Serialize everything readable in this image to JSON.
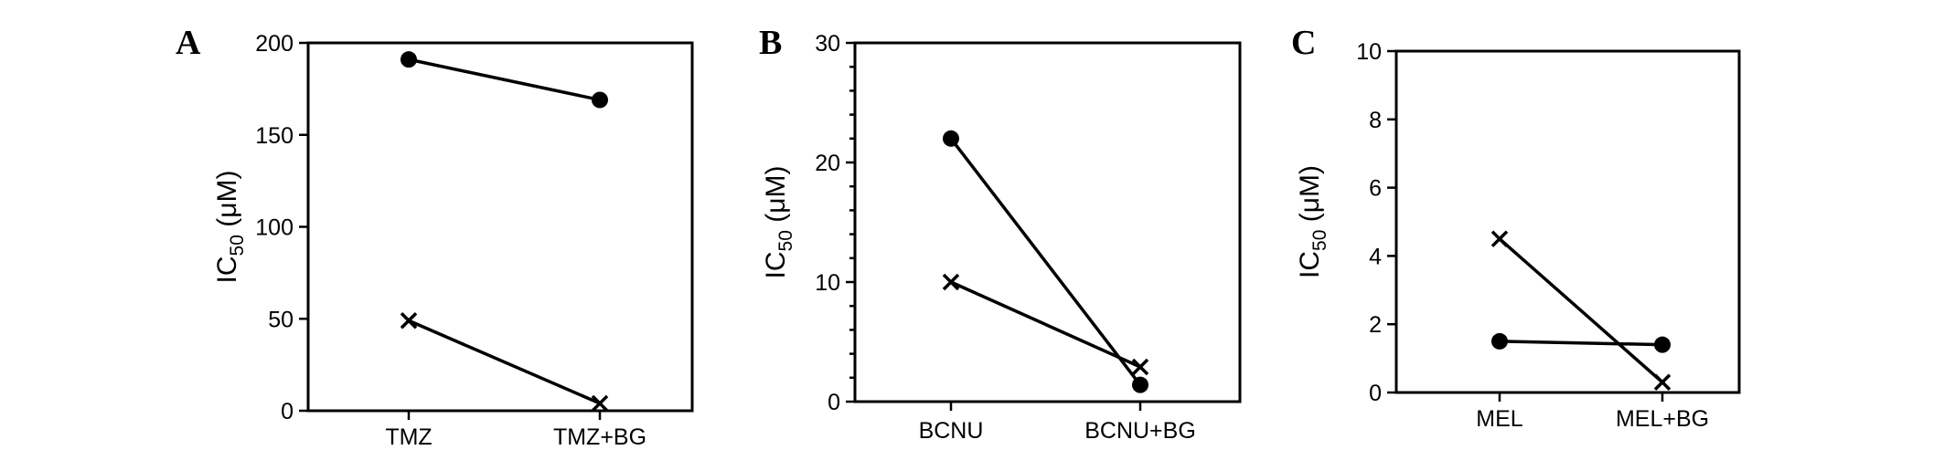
{
  "chart_data": [
    {
      "type": "line",
      "panel_label": "A",
      "ylabel": "IC",
      "ylabel_sub": "50",
      "ylabel_unit": " (μM)",
      "categories": [
        "TMZ",
        "TMZ+BG"
      ],
      "ylim": [
        0,
        200
      ],
      "yticks": [
        0,
        50,
        100,
        150,
        200
      ],
      "minor_ticks": false,
      "series": [
        {
          "marker": "dot",
          "values": [
            191,
            169
          ]
        },
        {
          "marker": "x",
          "values": [
            49,
            4
          ]
        }
      ]
    },
    {
      "type": "line",
      "panel_label": "B",
      "ylabel": "IC",
      "ylabel_sub": "50",
      "ylabel_unit": " (μM)",
      "categories": [
        "BCNU",
        "BCNU+BG"
      ],
      "ylim": [
        0,
        30
      ],
      "yticks": [
        0,
        10,
        20,
        30
      ],
      "minor_ticks": true,
      "series": [
        {
          "marker": "dot",
          "values": [
            22,
            1.4
          ]
        },
        {
          "marker": "x",
          "values": [
            10,
            2.9
          ]
        }
      ]
    },
    {
      "type": "line",
      "panel_label": "C",
      "ylabel": "IC",
      "ylabel_sub": "50",
      "ylabel_unit": " (μM)",
      "categories": [
        "MEL",
        "MEL+BG"
      ],
      "ylim": [
        0,
        10
      ],
      "yticks": [
        0,
        2,
        4,
        6,
        8,
        10
      ],
      "minor_ticks": false,
      "series": [
        {
          "marker": "dot",
          "values": [
            1.5,
            1.4
          ]
        },
        {
          "marker": "x",
          "values": [
            4.5,
            0.3
          ]
        }
      ]
    }
  ]
}
